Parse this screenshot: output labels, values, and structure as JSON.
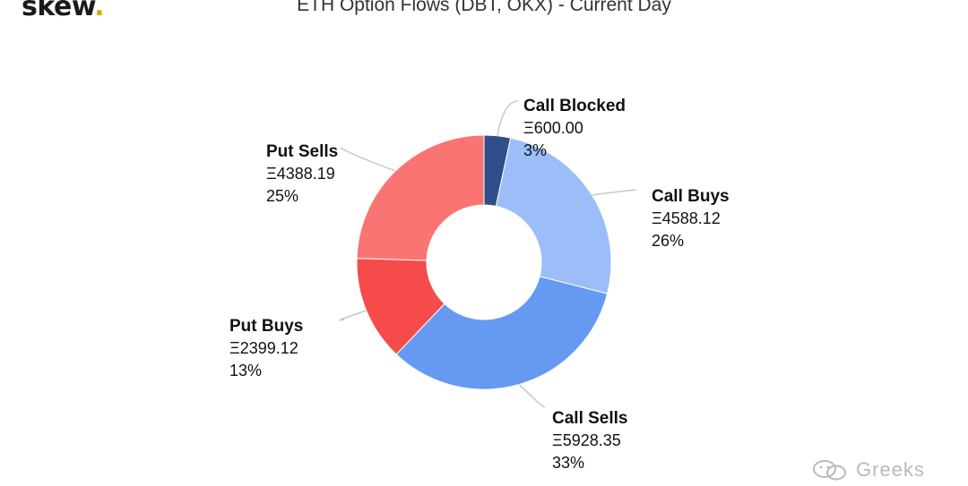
{
  "brand": {
    "name": "skew",
    "dot": "."
  },
  "chart_data": {
    "type": "pie",
    "donut": true,
    "title": "ETH Option Flows (DBT, OKX) - Current Day",
    "currency_symbol": "Ξ",
    "slices": [
      {
        "label": "Call Blocked",
        "value": 600.0,
        "value_text": "Ξ600.00",
        "percent_text": "3%",
        "color": "#2f4f8a"
      },
      {
        "label": "Call Buys",
        "value": 4588.12,
        "value_text": "Ξ4588.12",
        "percent_text": "26%",
        "color": "#9bbef9"
      },
      {
        "label": "Call Sells",
        "value": 5928.35,
        "value_text": "Ξ5928.35",
        "percent_text": "33%",
        "color": "#6699f2"
      },
      {
        "label": "Put Buys",
        "value": 2399.12,
        "value_text": "Ξ2399.12",
        "percent_text": "13%",
        "color": "#f54b4b"
      },
      {
        "label": "Put Sells",
        "value": 4388.19,
        "value_text": "Ξ4388.19",
        "percent_text": "25%",
        "color": "#fb7474"
      }
    ],
    "legend": "none"
  },
  "watermark": {
    "text": "Greeks"
  }
}
